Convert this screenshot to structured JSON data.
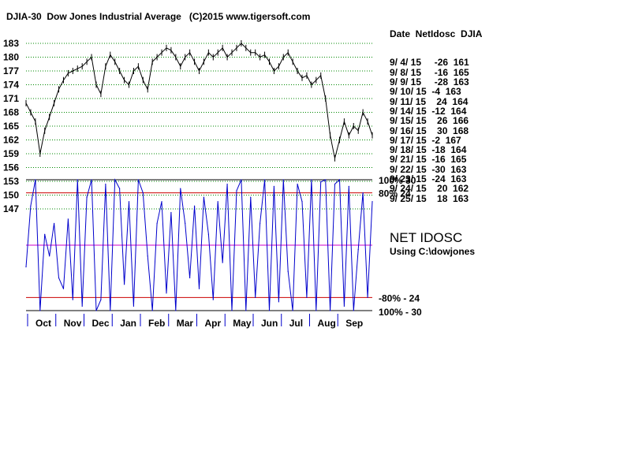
{
  "title": "DJIA-30  Dow Jones Industrial Average   (C)2015 www.tigersoft.com",
  "table": {
    "header": "Date  NetIdosc  DJIA",
    "rows": [
      "9/ 4/ 15     -26  161",
      "9/ 8/ 15     -16  165",
      "9/ 9/ 15     -28  163",
      "9/ 10/ 15  -4  163",
      "9/ 11/ 15    24  164",
      "9/ 14/ 15  -12  164",
      "9/ 15/ 15    26  166",
      "9/ 16/ 15    30  168",
      "9/ 17/ 15  -2  167",
      "9/ 18/ 15  -18  164",
      "9/ 21/ 15  -16  165",
      "9/ 22/ 15  -30  163",
      "9/ 23/ 15  -24  163",
      "9/ 24/ 15    20  162",
      "9/ 25/ 15    18  163"
    ]
  },
  "oscillator": {
    "title": "NET IDOSC",
    "subtitle": "Using C:\\dowjones",
    "level_labels": [
      "100% 30",
      "80%  24",
      "-80% - 24",
      "100%  - 30"
    ]
  },
  "colors": {
    "price": "#000000",
    "oscillator": "#0000cc",
    "threshold": "#cc0000",
    "zero": "#cc00cc",
    "grid": "#008800"
  },
  "chart_data": {
    "type": "line",
    "title": "DJIA-30  Dow Jones Industrial Average",
    "x_tick_labels": [
      "Oct",
      "Nov",
      "Dec",
      "Jan",
      "Feb",
      "Mar",
      "Apr",
      "May",
      "Jun",
      "Jul",
      "Aug",
      "Sep"
    ],
    "y_tick_labels": [
      "183",
      "180",
      "177",
      "174",
      "171",
      "168",
      "165",
      "162",
      "159",
      "156",
      "153",
      "150",
      "147"
    ],
    "ylim": [
      147,
      183
    ],
    "grid": true,
    "series": [
      {
        "name": "DJIA",
        "panel": "price",
        "values": [
          170,
          168,
          166,
          159,
          164,
          167,
          170,
          173,
          175,
          176.5,
          177,
          177.5,
          178,
          179,
          180,
          174,
          172,
          178,
          180.5,
          179,
          177,
          175,
          174,
          177,
          178,
          175,
          173,
          179,
          180,
          181,
          182,
          181.5,
          180,
          178,
          180,
          181,
          179,
          177,
          179,
          181,
          180,
          181,
          182,
          180,
          181,
          182,
          183,
          182,
          181,
          181,
          180,
          180.5,
          179,
          177,
          178,
          180,
          181,
          179,
          177,
          175.5,
          176,
          174,
          175,
          176,
          171,
          163,
          158,
          162,
          166,
          163,
          165,
          164,
          168,
          166,
          163
        ]
      },
      {
        "name": "NET IDOSC",
        "panel": "oscillator",
        "values": [
          -10,
          18,
          30,
          -30,
          5,
          -5,
          10,
          -15,
          -20,
          12,
          -25,
          30,
          -28,
          22,
          30,
          -30,
          -25,
          28,
          -30,
          30,
          26,
          -18,
          20,
          -28,
          30,
          24,
          -5,
          -30,
          10,
          20,
          -22,
          15,
          -30,
          26,
          10,
          -15,
          18,
          -20,
          22,
          5,
          -25,
          20,
          -8,
          28,
          -30,
          25,
          30,
          -30,
          22,
          -24,
          10,
          30,
          -30,
          27,
          -26,
          30,
          -12,
          -30,
          28,
          20,
          -24,
          30,
          -30,
          29,
          30,
          -30,
          28,
          30,
          -28,
          27,
          -30,
          -2,
          24,
          -24,
          20
        ]
      }
    ],
    "oscillator_ylim": [
      -30,
      30
    ]
  }
}
